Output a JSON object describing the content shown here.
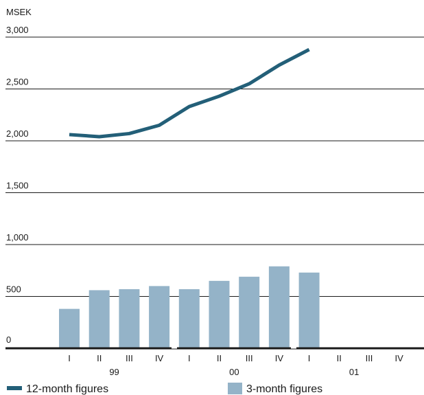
{
  "chart_data": {
    "type": "bar+line",
    "unit_label": "MSEK",
    "ylim": [
      0,
      3000
    ],
    "y_ticks": [
      0,
      500,
      1000,
      1500,
      2000,
      2500,
      3000
    ],
    "y_tick_labels": [
      "0",
      "500",
      "1,000",
      "1,500",
      "2,000",
      "2,500",
      "3,000"
    ],
    "quarter_labels": [
      "I",
      "II",
      "III",
      "IV",
      "I",
      "II",
      "III",
      "IV",
      "I",
      "II",
      "III",
      "IV"
    ],
    "year_labels": [
      "99",
      "00",
      "01"
    ],
    "series": [
      {
        "name": "3-month figures",
        "type": "bar",
        "values": [
          380,
          560,
          570,
          600,
          570,
          650,
          690,
          790,
          730,
          null,
          null,
          null
        ]
      },
      {
        "name": "12-month figures",
        "type": "line",
        "values": [
          2060,
          2040,
          2070,
          2150,
          2330,
          2430,
          2550,
          2730,
          2880,
          null,
          null,
          null
        ]
      }
    ],
    "colors": {
      "bar": "#94b3c8",
      "line": "#235f78",
      "grid": "#1a1a1a"
    },
    "grid": true,
    "legend_placement": "bottom"
  }
}
